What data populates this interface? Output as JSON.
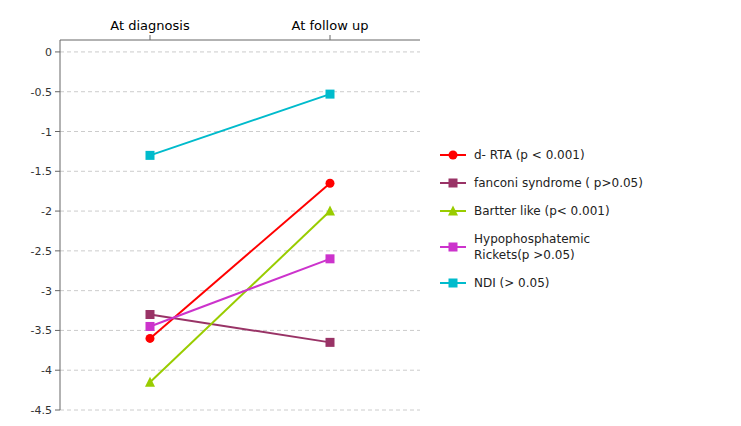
{
  "chart_data": {
    "type": "line",
    "categories": [
      "At diagnosis",
      "At follow up"
    ],
    "series": [
      {
        "name": "d- RTA (p < 0.001)",
        "color": "#ff0000",
        "marker": "circle",
        "values": [
          -3.6,
          -1.65
        ]
      },
      {
        "name": "fanconi syndrome ( p>0.05)",
        "color": "#993366",
        "marker": "square",
        "values": [
          -3.3,
          -3.65
        ]
      },
      {
        "name": "Bartter like (p< 0.001)",
        "color": "#99cc00",
        "marker": "triangle",
        "values": [
          -4.15,
          -2.0
        ]
      },
      {
        "name": "Hypophosphatemic\nRickets(p >0.05)",
        "color": "#cc33cc",
        "marker": "square",
        "values": [
          -3.45,
          -2.6
        ]
      },
      {
        "name": "NDI (> 0.05)",
        "color": "#00bbcc",
        "marker": "square",
        "values": [
          -1.3,
          -0.53
        ]
      }
    ],
    "ylim": [
      -4.5,
      0.15
    ],
    "yticks": [
      0,
      -0.5,
      -1,
      -1.5,
      -2,
      -2.5,
      -3,
      -3.5,
      -4,
      -4.5
    ],
    "grid": true,
    "legend": "right"
  }
}
